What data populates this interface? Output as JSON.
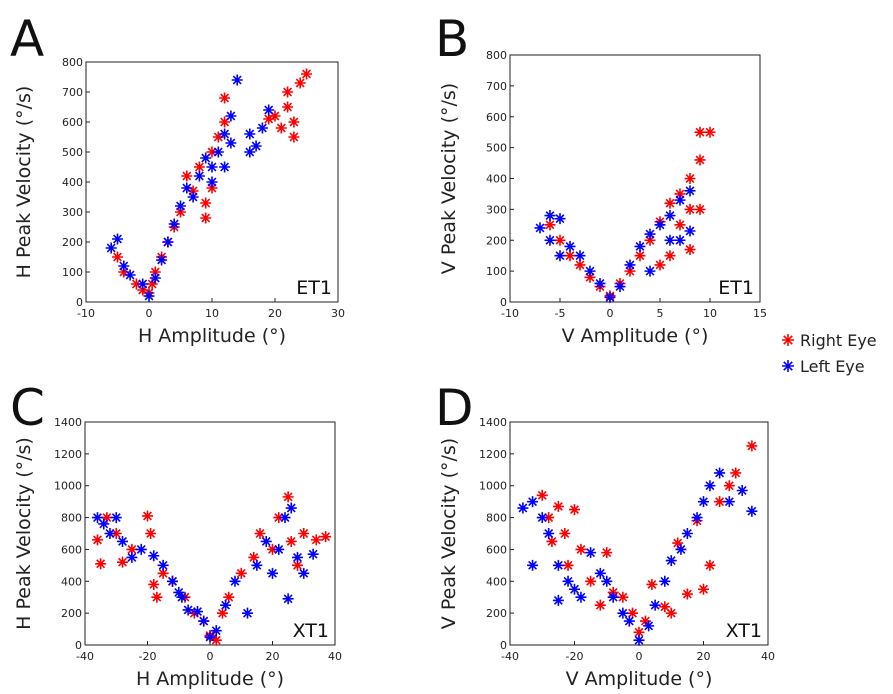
{
  "chart_data": [
    {
      "type": "scatter",
      "panel": "A",
      "annotation": "ET1",
      "xlabel": "H Amplitude (°)",
      "ylabel": "H Peak Velocity (°/s)",
      "xlim": [
        -10,
        30
      ],
      "xticks": [
        -10,
        0,
        10,
        20,
        30
      ],
      "ylim": [
        0,
        800
      ],
      "yticks": [
        0,
        100,
        200,
        300,
        400,
        500,
        600,
        700,
        800
      ],
      "series": [
        {
          "name": "Right Eye",
          "color": "#ff0000",
          "x": [
            -5,
            -4,
            -2,
            -1,
            0,
            0.5,
            1,
            2,
            3,
            4,
            5,
            6,
            7,
            8,
            9,
            9,
            10,
            10,
            11,
            12,
            12,
            20,
            21,
            22,
            22,
            23,
            24,
            25,
            23,
            19
          ],
          "values": [
            150,
            100,
            60,
            40,
            30,
            60,
            100,
            150,
            200,
            250,
            300,
            420,
            370,
            450,
            280,
            330,
            380,
            500,
            550,
            600,
            680,
            620,
            580,
            650,
            700,
            600,
            730,
            760,
            550,
            610
          ]
        },
        {
          "name": "Left Eye",
          "color": "#0000ff",
          "x": [
            -6,
            -5,
            -4,
            -3,
            -1,
            0,
            1,
            2,
            3,
            4,
            5,
            6,
            7,
            8,
            9,
            10,
            11,
            12,
            13,
            14,
            16,
            16,
            17,
            18,
            19,
            13,
            12,
            10
          ],
          "values": [
            180,
            210,
            120,
            90,
            60,
            20,
            80,
            140,
            200,
            260,
            320,
            380,
            350,
            420,
            480,
            450,
            500,
            560,
            620,
            740,
            500,
            560,
            520,
            580,
            640,
            530,
            450,
            400
          ]
        }
      ]
    },
    {
      "type": "scatter",
      "panel": "B",
      "annotation": "ET1",
      "xlabel": "V Amplitude (°)",
      "ylabel": "V Peak Velocity (°/s)",
      "xlim": [
        -10,
        15
      ],
      "xticks": [
        -10,
        -5,
        0,
        5,
        10,
        15
      ],
      "ylim": [
        0,
        800
      ],
      "yticks": [
        0,
        100,
        200,
        300,
        400,
        500,
        600,
        700,
        800
      ],
      "series": [
        {
          "name": "Right Eye",
          "color": "#ff0000",
          "x": [
            -6,
            -5,
            -4,
            -3,
            -2,
            -1,
            0,
            1,
            2,
            3,
            4,
            5,
            6,
            7,
            7,
            8,
            8,
            8,
            9,
            9,
            10,
            9,
            6,
            5
          ],
          "values": [
            250,
            200,
            150,
            120,
            80,
            50,
            20,
            60,
            100,
            150,
            200,
            260,
            320,
            350,
            250,
            400,
            300,
            170,
            460,
            550,
            550,
            300,
            150,
            120
          ]
        },
        {
          "name": "Left Eye",
          "color": "#0000ff",
          "x": [
            -7,
            -6,
            -6,
            -5,
            -5,
            -4,
            -3,
            -2,
            -1,
            0,
            1,
            2,
            3,
            4,
            5,
            6,
            7,
            7,
            8,
            8,
            4,
            6
          ],
          "values": [
            240,
            280,
            200,
            270,
            150,
            180,
            150,
            100,
            60,
            15,
            50,
            120,
            180,
            220,
            250,
            280,
            330,
            200,
            360,
            230,
            100,
            200
          ]
        }
      ]
    },
    {
      "type": "scatter",
      "panel": "C",
      "annotation": "XT1",
      "xlabel": "H Amplitude (°)",
      "ylabel": "H Peak Velocity (°/s)",
      "xlim": [
        -40,
        40
      ],
      "xticks": [
        -40,
        -20,
        0,
        20,
        40
      ],
      "ylim": [
        0,
        1400
      ],
      "yticks": [
        0,
        200,
        400,
        600,
        800,
        1000,
        1200,
        1400
      ],
      "series": [
        {
          "name": "Right Eye",
          "color": "#ff0000",
          "x": [
            -36,
            -35,
            -33,
            -30,
            -28,
            -25,
            -20,
            -19,
            -18,
            -17,
            -15,
            -12,
            -8,
            -5,
            -2,
            0,
            2,
            4,
            6,
            10,
            14,
            16,
            20,
            22,
            25,
            26,
            30,
            34,
            37,
            28
          ],
          "values": [
            660,
            510,
            800,
            700,
            520,
            600,
            810,
            700,
            380,
            300,
            450,
            400,
            300,
            200,
            150,
            60,
            30,
            200,
            300,
            450,
            550,
            700,
            600,
            800,
            930,
            650,
            700,
            660,
            680,
            500
          ]
        },
        {
          "name": "Left Eye",
          "color": "#0000ff",
          "x": [
            -36,
            -34,
            -32,
            -30,
            -28,
            -25,
            -22,
            -18,
            -15,
            -12,
            -9,
            -7,
            -4,
            -2,
            0,
            2,
            5,
            8,
            12,
            15,
            18,
            20,
            22,
            24,
            26,
            28,
            30,
            33,
            25,
            -10
          ],
          "values": [
            800,
            760,
            700,
            800,
            650,
            550,
            600,
            560,
            500,
            400,
            300,
            220,
            210,
            150,
            50,
            90,
            250,
            400,
            200,
            500,
            650,
            450,
            600,
            800,
            860,
            550,
            450,
            570,
            290,
            330
          ]
        }
      ]
    },
    {
      "type": "scatter",
      "panel": "D",
      "annotation": "XT1",
      "xlabel": "V Amplitude (°)",
      "ylabel": "V Peak Velocity (°/s)",
      "xlim": [
        -40,
        40
      ],
      "xticks": [
        -40,
        -20,
        0,
        20,
        40
      ],
      "ylim": [
        0,
        1400
      ],
      "yticks": [
        0,
        200,
        400,
        600,
        800,
        1000,
        1200,
        1400
      ],
      "series": [
        {
          "name": "Right Eye",
          "color": "#ff0000",
          "x": [
            -30,
            -28,
            -27,
            -25,
            -23,
            -22,
            -20,
            -18,
            -15,
            -12,
            -10,
            -8,
            -5,
            -2,
            0,
            2,
            4,
            8,
            12,
            15,
            18,
            22,
            25,
            28,
            30,
            35,
            20,
            10
          ],
          "values": [
            940,
            800,
            650,
            870,
            700,
            500,
            850,
            600,
            400,
            250,
            580,
            330,
            300,
            200,
            80,
            150,
            380,
            240,
            640,
            320,
            780,
            500,
            900,
            1000,
            1080,
            1250,
            350,
            200
          ]
        },
        {
          "name": "Left Eye",
          "color": "#0000ff",
          "x": [
            -36,
            -33,
            -30,
            -28,
            -33,
            -25,
            -22,
            -20,
            -18,
            -15,
            -12,
            -10,
            -8,
            -5,
            -3,
            0,
            3,
            5,
            8,
            10,
            13,
            15,
            18,
            20,
            22,
            25,
            28,
            32,
            35,
            -25
          ],
          "values": [
            860,
            900,
            800,
            700,
            500,
            500,
            400,
            350,
            300,
            580,
            450,
            400,
            300,
            200,
            150,
            30,
            120,
            250,
            400,
            530,
            600,
            700,
            800,
            900,
            1000,
            1080,
            900,
            970,
            840,
            280
          ]
        }
      ]
    }
  ]
}
